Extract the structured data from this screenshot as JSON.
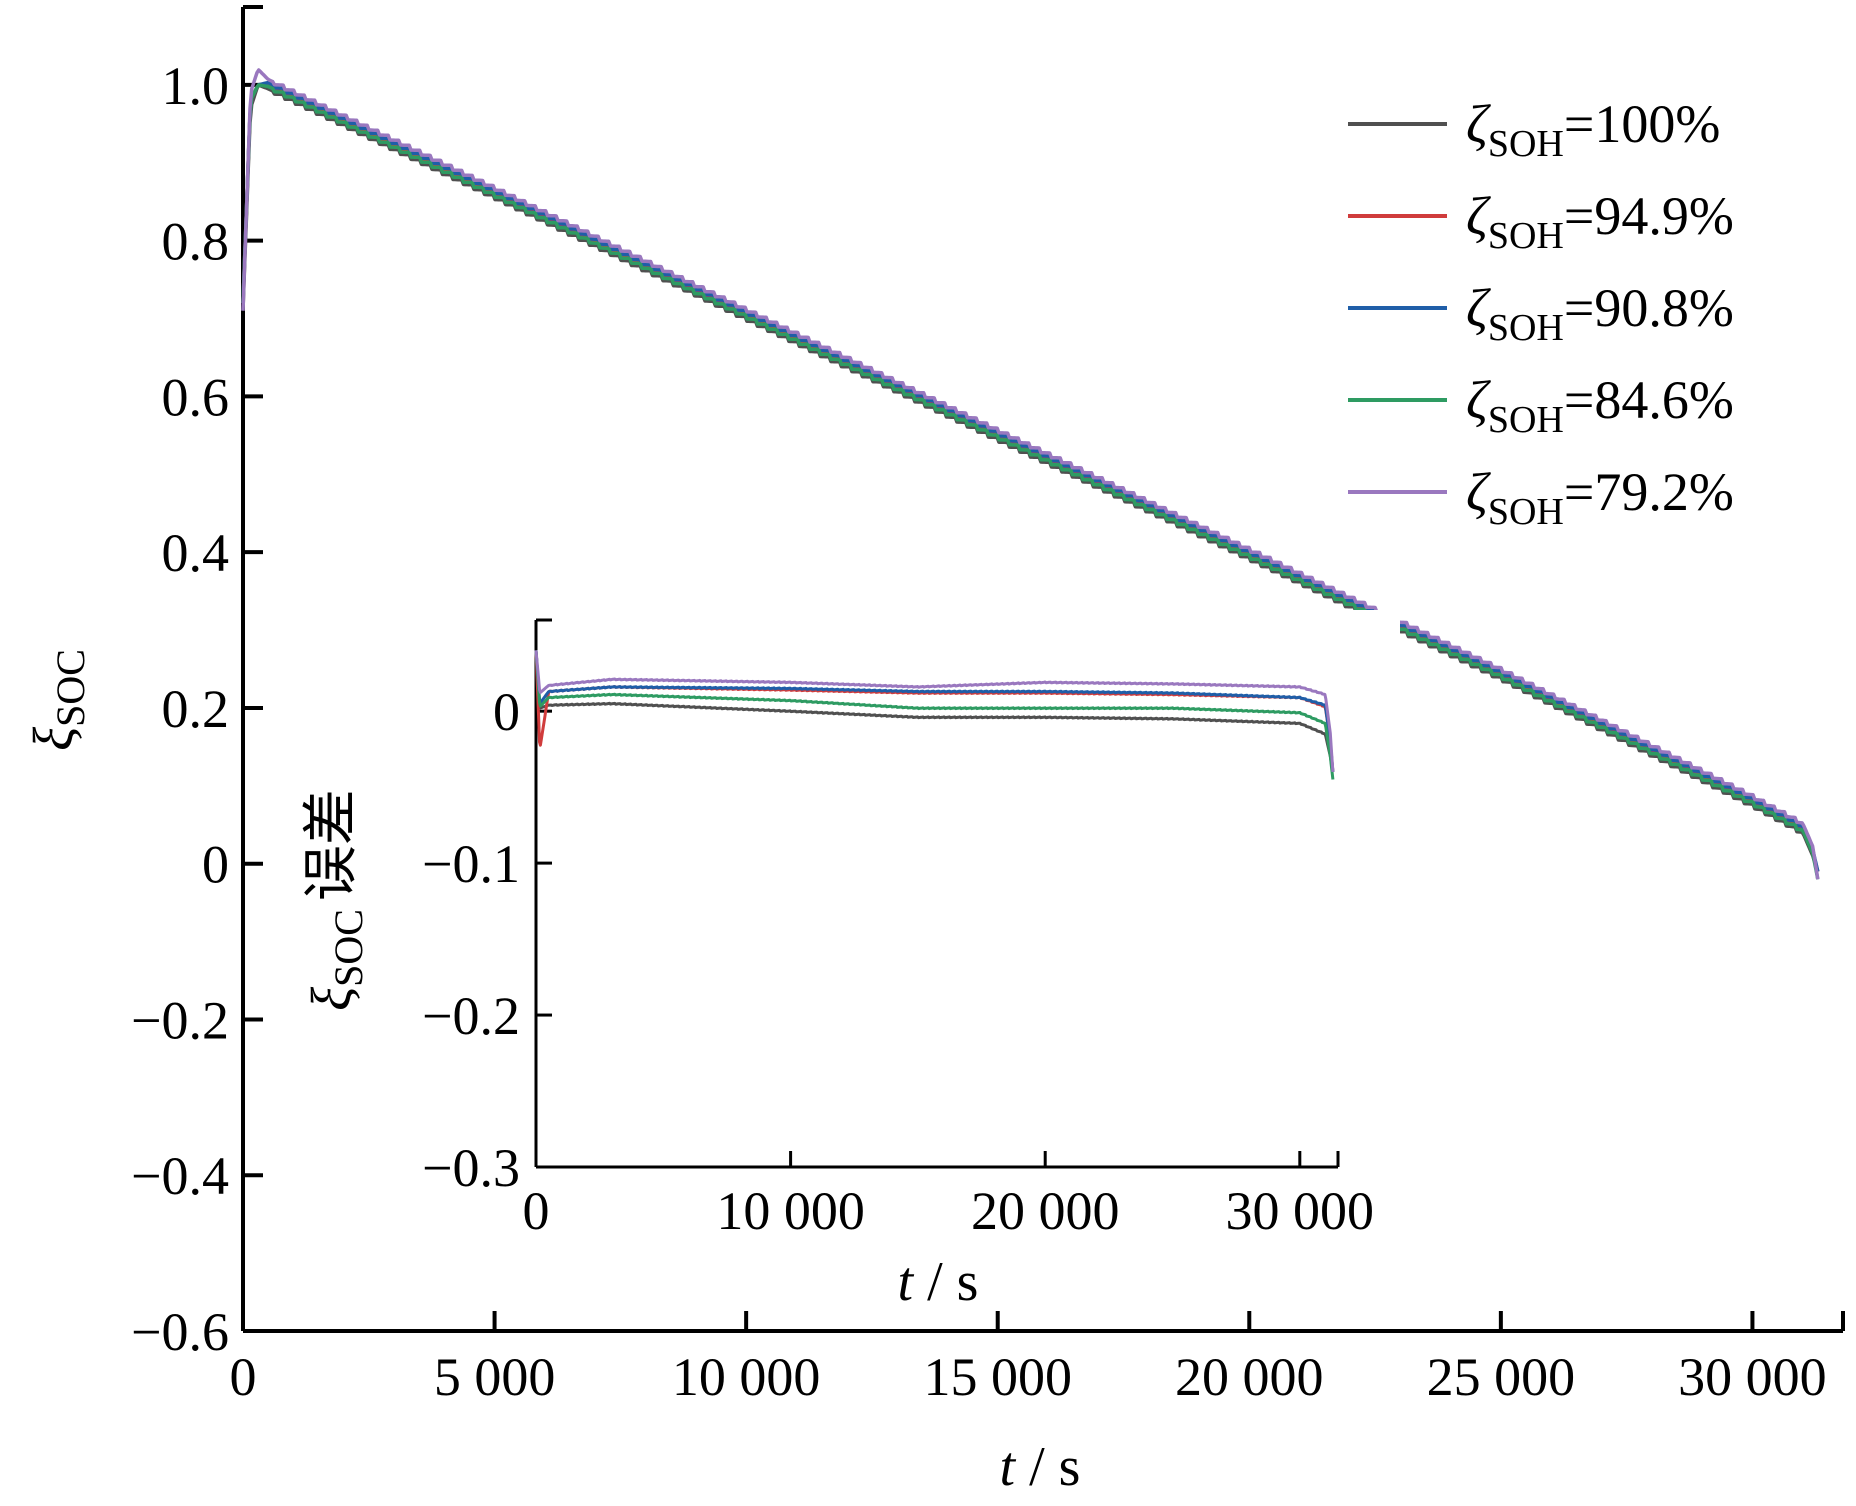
{
  "chart_data": [
    {
      "type": "line",
      "panel": "main",
      "xlabel": {
        "var": "t",
        "unit": "s"
      },
      "ylabel": {
        "sym": "ξ",
        "sub": "SOC"
      },
      "xlim": [
        0,
        31800
      ],
      "ylim": [
        -0.6,
        1.1
      ],
      "xticks": [
        0,
        5000,
        10000,
        15000,
        20000,
        25000,
        30000
      ],
      "xtick_labels": [
        "0",
        "5 000",
        "10 000",
        "15 000",
        "20 000",
        "25 000",
        "30 000"
      ],
      "yticks": [
        -0.6,
        -0.4,
        -0.2,
        0,
        0.2,
        0.4,
        0.6,
        0.8,
        1.0
      ],
      "ytick_labels": [
        "−0.6",
        "−0.4",
        "−0.2",
        "0",
        "0.2",
        "0.4",
        "0.6",
        "0.8",
        "1.0"
      ],
      "grid": false,
      "legend_position": "top-right",
      "series": [
        {
          "name": "ζSOH=100%",
          "sym": "ζ",
          "sub": "SOH",
          "value": "=100%",
          "color": "#505050",
          "offset": 0.0,
          "x": [
            0,
            150,
            300,
            500,
            5000,
            10000,
            15000,
            20000,
            25000,
            30000,
            31000,
            31200,
            31300
          ],
          "y": [
            0.71,
            0.97,
            1.0,
            0.995,
            0.856,
            0.7,
            0.545,
            0.392,
            0.238,
            0.075,
            0.04,
            0.01,
            -0.01
          ]
        },
        {
          "name": "ζSOH=94.9%",
          "sym": "ζ",
          "sub": "SOH",
          "value": "=94.9%",
          "color": "#d03c3c",
          "offset": 0.005,
          "x": [
            0,
            150,
            300,
            500,
            5000,
            10000,
            15000,
            20000,
            25000,
            30000,
            31000,
            31200,
            31300
          ],
          "y": [
            0.72,
            0.98,
            1.0,
            1.0,
            0.861,
            0.705,
            0.55,
            0.397,
            0.243,
            0.08,
            0.045,
            0.015,
            -0.01
          ]
        },
        {
          "name": "ζSOH=90.8%",
          "sym": "ζ",
          "sub": "SOH",
          "value": "=90.8%",
          "color": "#1f5ea8",
          "offset": 0.008,
          "x": [
            0,
            150,
            300,
            500,
            5000,
            10000,
            15000,
            20000,
            25000,
            30000,
            31000,
            31200,
            31300
          ],
          "y": [
            0.72,
            0.98,
            1.0,
            1.003,
            0.864,
            0.708,
            0.553,
            0.4,
            0.246,
            0.083,
            0.048,
            0.018,
            -0.01
          ]
        },
        {
          "name": "ζSOH=84.6%",
          "sym": "ζ",
          "sub": "SOH",
          "value": "=84.6%",
          "color": "#2e9b62",
          "offset": 0.003,
          "x": [
            0,
            150,
            300,
            500,
            5000,
            10000,
            15000,
            20000,
            25000,
            30000,
            31000,
            31200,
            31300
          ],
          "y": [
            0.72,
            0.98,
            1.0,
            0.998,
            0.859,
            0.703,
            0.548,
            0.395,
            0.241,
            0.078,
            0.043,
            0.013,
            -0.02
          ]
        },
        {
          "name": "ζSOH=79.2%",
          "sym": "ζ",
          "sub": "SOH",
          "value": "=79.2%",
          "color": "#9a78bf",
          "offset": 0.012,
          "x": [
            0,
            150,
            300,
            500,
            5000,
            10000,
            15000,
            20000,
            25000,
            30000,
            31000,
            31200,
            31300
          ],
          "y": [
            0.71,
            0.99,
            1.02,
            1.007,
            0.868,
            0.712,
            0.557,
            0.404,
            0.25,
            0.087,
            0.052,
            0.022,
            -0.02
          ]
        }
      ]
    },
    {
      "type": "line",
      "panel": "inset",
      "xlabel": {
        "var": "t",
        "unit": "s"
      },
      "ylabel": {
        "sym": "ξ",
        "sub": "SOC",
        "suffix": "误差"
      },
      "xlim": [
        0,
        31500
      ],
      "ylim": [
        -0.3,
        0.06
      ],
      "xticks": [
        0,
        10000,
        20000,
        30000
      ],
      "xtick_labels": [
        "0",
        "10 000",
        "20 000",
        "30 000"
      ],
      "yticks": [
        -0.3,
        -0.2,
        -0.1,
        0
      ],
      "ytick_labels": [
        "−0.3",
        "−0.2",
        "−0.1",
        "0"
      ],
      "grid": false,
      "series": [
        {
          "name": "ζSOH=100%",
          "color": "#505050",
          "x": [
            0,
            150,
            500,
            3000,
            10000,
            15000,
            20000,
            25000,
            30000,
            31000,
            31200,
            31300
          ],
          "y": [
            0.04,
            0.002,
            0.004,
            0.005,
            0.0,
            -0.004,
            -0.004,
            -0.005,
            -0.008,
            -0.015,
            -0.03,
            -0.04
          ]
        },
        {
          "name": "ζSOH=94.9%",
          "color": "#d03c3c",
          "x": [
            0,
            150,
            500,
            3000,
            10000,
            15000,
            20000,
            25000,
            30000,
            31000,
            31200,
            31300
          ],
          "y": [
            0.04,
            -0.025,
            0.013,
            0.016,
            0.014,
            0.012,
            0.012,
            0.011,
            0.009,
            0.003,
            -0.02,
            -0.04
          ]
        },
        {
          "name": "ζSOH=90.8%",
          "color": "#1f5ea8",
          "x": [
            0,
            150,
            500,
            3000,
            10000,
            15000,
            20000,
            25000,
            30000,
            31000,
            31200,
            31300
          ],
          "y": [
            0.04,
            0.005,
            0.013,
            0.016,
            0.015,
            0.013,
            0.013,
            0.012,
            0.009,
            0.004,
            -0.02,
            -0.04
          ]
        },
        {
          "name": "ζSOH=84.6%",
          "color": "#2e9b62",
          "x": [
            0,
            150,
            500,
            3000,
            10000,
            15000,
            20000,
            25000,
            30000,
            31000,
            31200,
            31300
          ],
          "y": [
            0.04,
            0.003,
            0.009,
            0.011,
            0.007,
            0.002,
            0.002,
            0.002,
            -0.001,
            -0.008,
            -0.03,
            -0.045
          ]
        },
        {
          "name": "ζSOH=79.2%",
          "color": "#9a78bf",
          "x": [
            0,
            150,
            500,
            3000,
            10000,
            15000,
            20000,
            25000,
            30000,
            31000,
            31200,
            31300
          ],
          "y": [
            0.04,
            0.012,
            0.017,
            0.021,
            0.019,
            0.016,
            0.019,
            0.018,
            0.016,
            0.011,
            -0.015,
            -0.04
          ]
        }
      ]
    }
  ]
}
